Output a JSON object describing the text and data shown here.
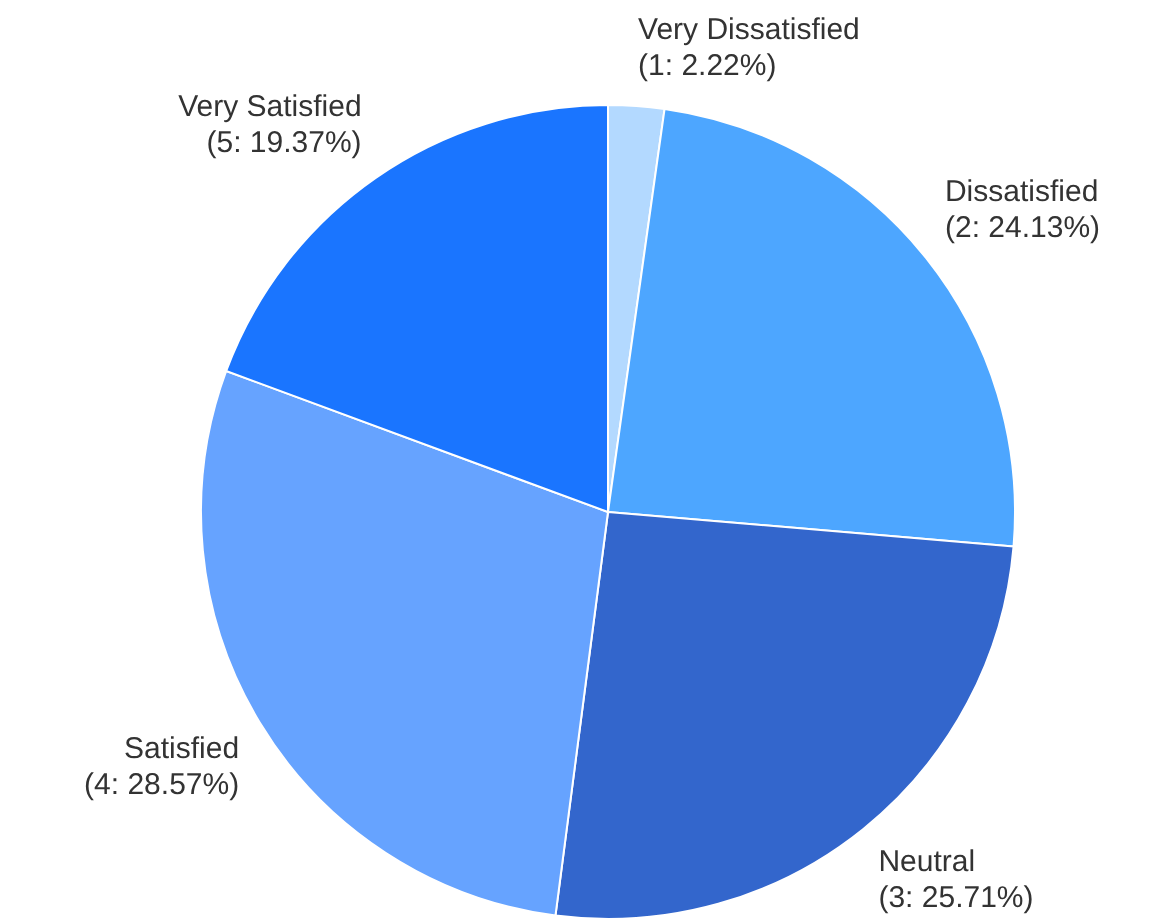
{
  "chart_data": {
    "type": "pie",
    "categories": [
      "Very Dissatisfied",
      "Dissatisfied",
      "Neutral",
      "Satisfied",
      "Very Satisfied"
    ],
    "values": [
      2.22,
      24.13,
      25.71,
      28.57,
      19.37
    ],
    "value_labels": [
      "(1: 2.22%)",
      "(2: 24.13%)",
      "(3: 25.71%)",
      "(4: 28.57%)",
      "(5: 19.37%)"
    ],
    "colors": [
      "#b3d9ff",
      "#4da6ff",
      "#3366cc",
      "#66a3ff",
      "#1a75ff"
    ],
    "legend": false
  }
}
